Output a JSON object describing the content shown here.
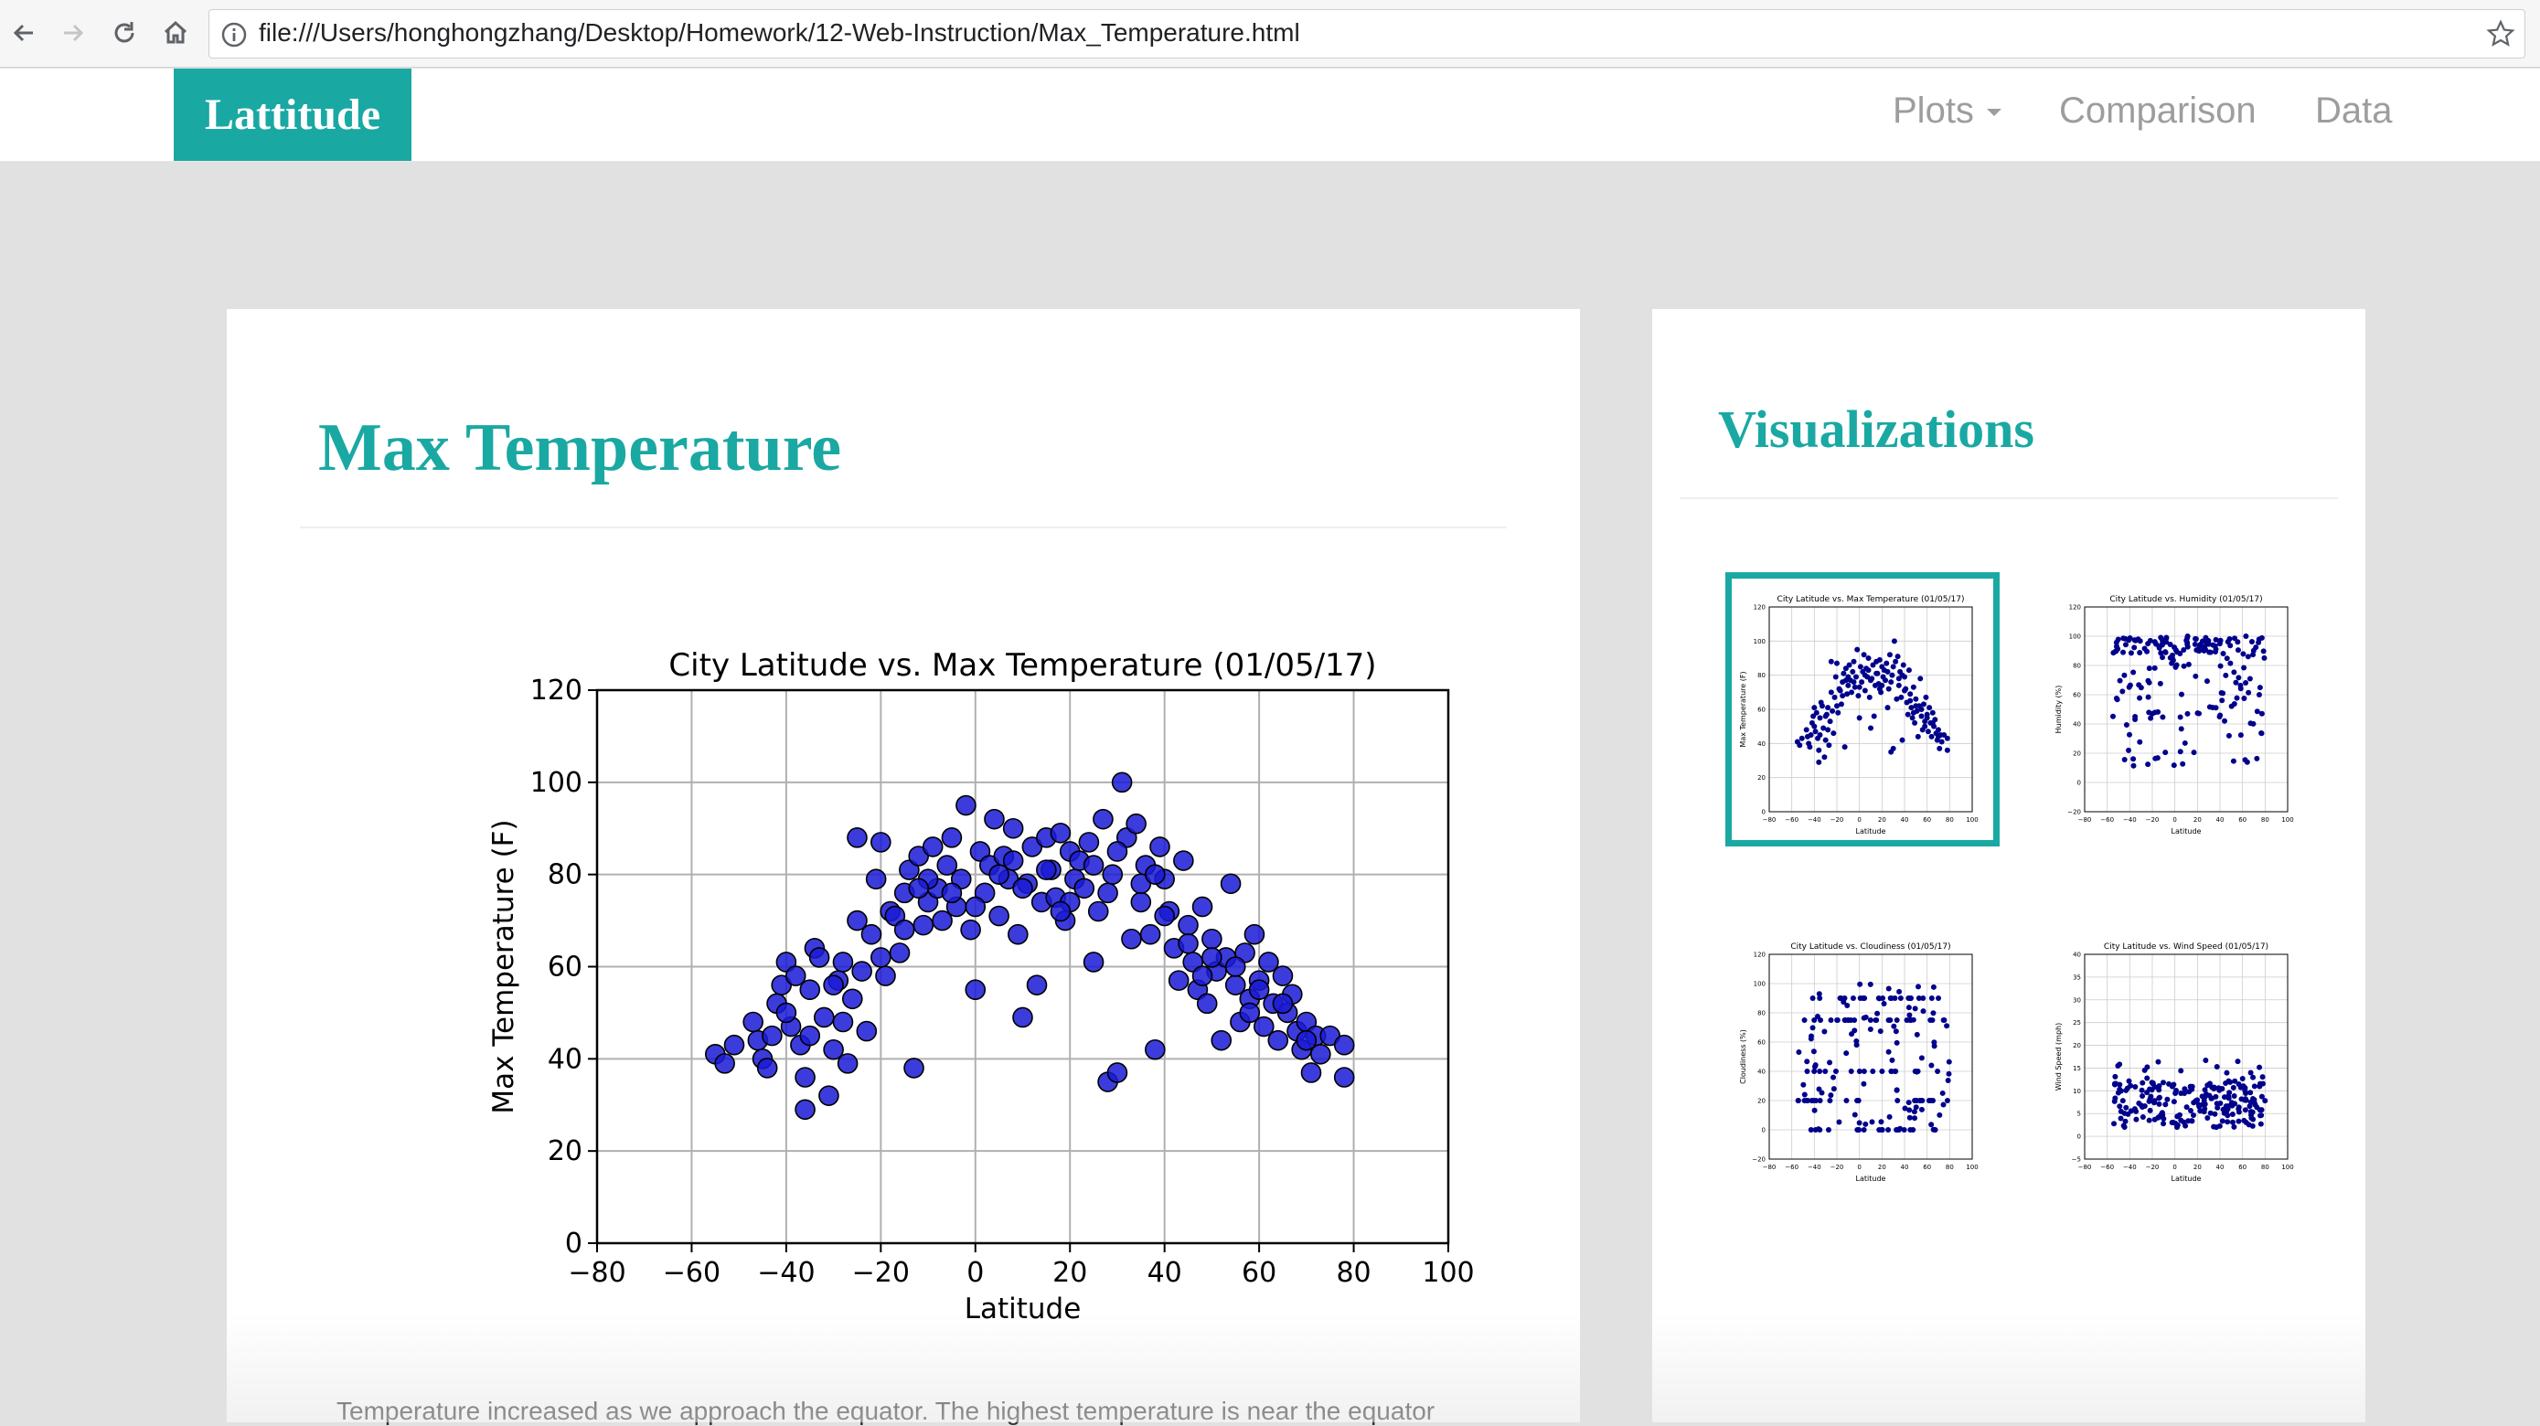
{
  "browser": {
    "url": "file:///Users/honghongzhang/Desktop/Homework/12-Web-Instruction/Max_Temperature.html"
  },
  "navbar": {
    "brand": "Lattitude",
    "links": [
      "Plots",
      "Comparison",
      "Data"
    ]
  },
  "main": {
    "title": "Max Temperature",
    "description": "Temperature increased as we approach the equator. The highest temperature is near the equator"
  },
  "sidebar": {
    "title": "Visualizations",
    "thumbnails": [
      {
        "title": "City Latitude vs. Max Temperature (01/05/17)",
        "ylabel": "Max Temperature (F)",
        "xlabel": "Latitude",
        "active": true
      },
      {
        "title": "City Latitude vs. Humidity (01/05/17)",
        "ylabel": "Humidity (%)",
        "xlabel": "Latitude",
        "active": false
      },
      {
        "title": "City Latitude vs. Cloudiness (01/05/17)",
        "ylabel": "Cloudiness (%)",
        "xlabel": "Latitude",
        "active": false
      },
      {
        "title": "City Latitude vs. Wind Speed (01/05/17)",
        "ylabel": "Wind Speed (mph)",
        "xlabel": "Latitude",
        "active": false
      }
    ]
  },
  "colors": {
    "accent": "#1aa8a3",
    "marker": "#1a1ad6",
    "thumb_marker": "#00008b"
  },
  "chart_data": {
    "type": "scatter",
    "title": "City Latitude vs. Max Temperature (01/05/17)",
    "xlabel": "Latitude",
    "ylabel": "Max Temperature (F)",
    "xlim": [
      -80,
      100
    ],
    "ylim": [
      0,
      120
    ],
    "xticks": [
      -80,
      -60,
      -40,
      -20,
      0,
      20,
      40,
      60,
      80,
      100
    ],
    "yticks": [
      0,
      20,
      40,
      60,
      80,
      100,
      120
    ],
    "grid": true,
    "points": [
      [
        -55,
        41
      ],
      [
        -53,
        39
      ],
      [
        -51,
        43
      ],
      [
        -47,
        48
      ],
      [
        -46,
        44
      ],
      [
        -45,
        40
      ],
      [
        -44,
        38
      ],
      [
        -43,
        45
      ],
      [
        -42,
        52
      ],
      [
        -41,
        56
      ],
      [
        -40,
        61
      ],
      [
        -39,
        47
      ],
      [
        -38,
        58
      ],
      [
        -37,
        43
      ],
      [
        -36,
        36
      ],
      [
        -36,
        29
      ],
      [
        -35,
        55
      ],
      [
        -34,
        64
      ],
      [
        -33,
        62
      ],
      [
        -32,
        49
      ],
      [
        -31,
        32
      ],
      [
        -30,
        42
      ],
      [
        -29,
        57
      ],
      [
        -28,
        61
      ],
      [
        -27,
        39
      ],
      [
        -26,
        53
      ],
      [
        -25,
        88
      ],
      [
        -24,
        59
      ],
      [
        -23,
        46
      ],
      [
        -22,
        67
      ],
      [
        -21,
        79
      ],
      [
        -20,
        87
      ],
      [
        -19,
        58
      ],
      [
        -18,
        72
      ],
      [
        -17,
        71
      ],
      [
        -16,
        63
      ],
      [
        -15,
        76
      ],
      [
        -14,
        81
      ],
      [
        -13,
        38
      ],
      [
        -12,
        84
      ],
      [
        -11,
        69
      ],
      [
        -10,
        74
      ],
      [
        -9,
        86
      ],
      [
        -8,
        77
      ],
      [
        -7,
        70
      ],
      [
        -6,
        82
      ],
      [
        -5,
        88
      ],
      [
        -4,
        73
      ],
      [
        -3,
        79
      ],
      [
        -2,
        95
      ],
      [
        -1,
        68
      ],
      [
        0,
        55
      ],
      [
        1,
        85
      ],
      [
        2,
        76
      ],
      [
        3,
        82
      ],
      [
        4,
        92
      ],
      [
        5,
        71
      ],
      [
        6,
        84
      ],
      [
        7,
        79
      ],
      [
        8,
        90
      ],
      [
        9,
        67
      ],
      [
        10,
        49
      ],
      [
        11,
        78
      ],
      [
        12,
        86
      ],
      [
        13,
        56
      ],
      [
        14,
        74
      ],
      [
        15,
        88
      ],
      [
        16,
        81
      ],
      [
        17,
        75
      ],
      [
        18,
        89
      ],
      [
        19,
        70
      ],
      [
        20,
        85
      ],
      [
        21,
        79
      ],
      [
        22,
        83
      ],
      [
        23,
        77
      ],
      [
        24,
        87
      ],
      [
        25,
        61
      ],
      [
        26,
        72
      ],
      [
        27,
        92
      ],
      [
        28,
        35
      ],
      [
        29,
        80
      ],
      [
        30,
        37
      ],
      [
        31,
        100
      ],
      [
        32,
        88
      ],
      [
        33,
        66
      ],
      [
        34,
        91
      ],
      [
        35,
        74
      ],
      [
        36,
        82
      ],
      [
        37,
        67
      ],
      [
        38,
        42
      ],
      [
        39,
        86
      ],
      [
        40,
        79
      ],
      [
        41,
        72
      ],
      [
        42,
        64
      ],
      [
        43,
        57
      ],
      [
        44,
        83
      ],
      [
        45,
        69
      ],
      [
        46,
        61
      ],
      [
        47,
        55
      ],
      [
        48,
        73
      ],
      [
        49,
        52
      ],
      [
        50,
        66
      ],
      [
        51,
        59
      ],
      [
        52,
        44
      ],
      [
        53,
        62
      ],
      [
        54,
        78
      ],
      [
        55,
        56
      ],
      [
        56,
        48
      ],
      [
        57,
        63
      ],
      [
        58,
        53
      ],
      [
        59,
        67
      ],
      [
        60,
        57
      ],
      [
        61,
        47
      ],
      [
        62,
        61
      ],
      [
        63,
        52
      ],
      [
        64,
        44
      ],
      [
        65,
        58
      ],
      [
        66,
        50
      ],
      [
        67,
        54
      ],
      [
        68,
        46
      ],
      [
        69,
        42
      ],
      [
        70,
        48
      ],
      [
        71,
        37
      ],
      [
        72,
        45
      ],
      [
        73,
        41
      ],
      [
        75,
        45
      ],
      [
        78,
        43
      ],
      [
        78,
        36
      ],
      [
        -40,
        50
      ],
      [
        -35,
        45
      ],
      [
        -30,
        56
      ],
      [
        -25,
        70
      ],
      [
        -20,
        62
      ],
      [
        -15,
        68
      ],
      [
        -10,
        79
      ],
      [
        -5,
        76
      ],
      [
        0,
        73
      ],
      [
        5,
        80
      ],
      [
        10,
        77
      ],
      [
        15,
        81
      ],
      [
        20,
        74
      ],
      [
        25,
        82
      ],
      [
        30,
        85
      ],
      [
        35,
        78
      ],
      [
        40,
        71
      ],
      [
        45,
        65
      ],
      [
        50,
        62
      ],
      [
        55,
        60
      ],
      [
        60,
        55
      ],
      [
        65,
        52
      ],
      [
        70,
        44
      ],
      [
        -12,
        77
      ],
      [
        8,
        83
      ],
      [
        28,
        76
      ],
      [
        48,
        58
      ],
      [
        -28,
        48
      ],
      [
        18,
        72
      ],
      [
        38,
        80
      ],
      [
        58,
        50
      ]
    ]
  }
}
